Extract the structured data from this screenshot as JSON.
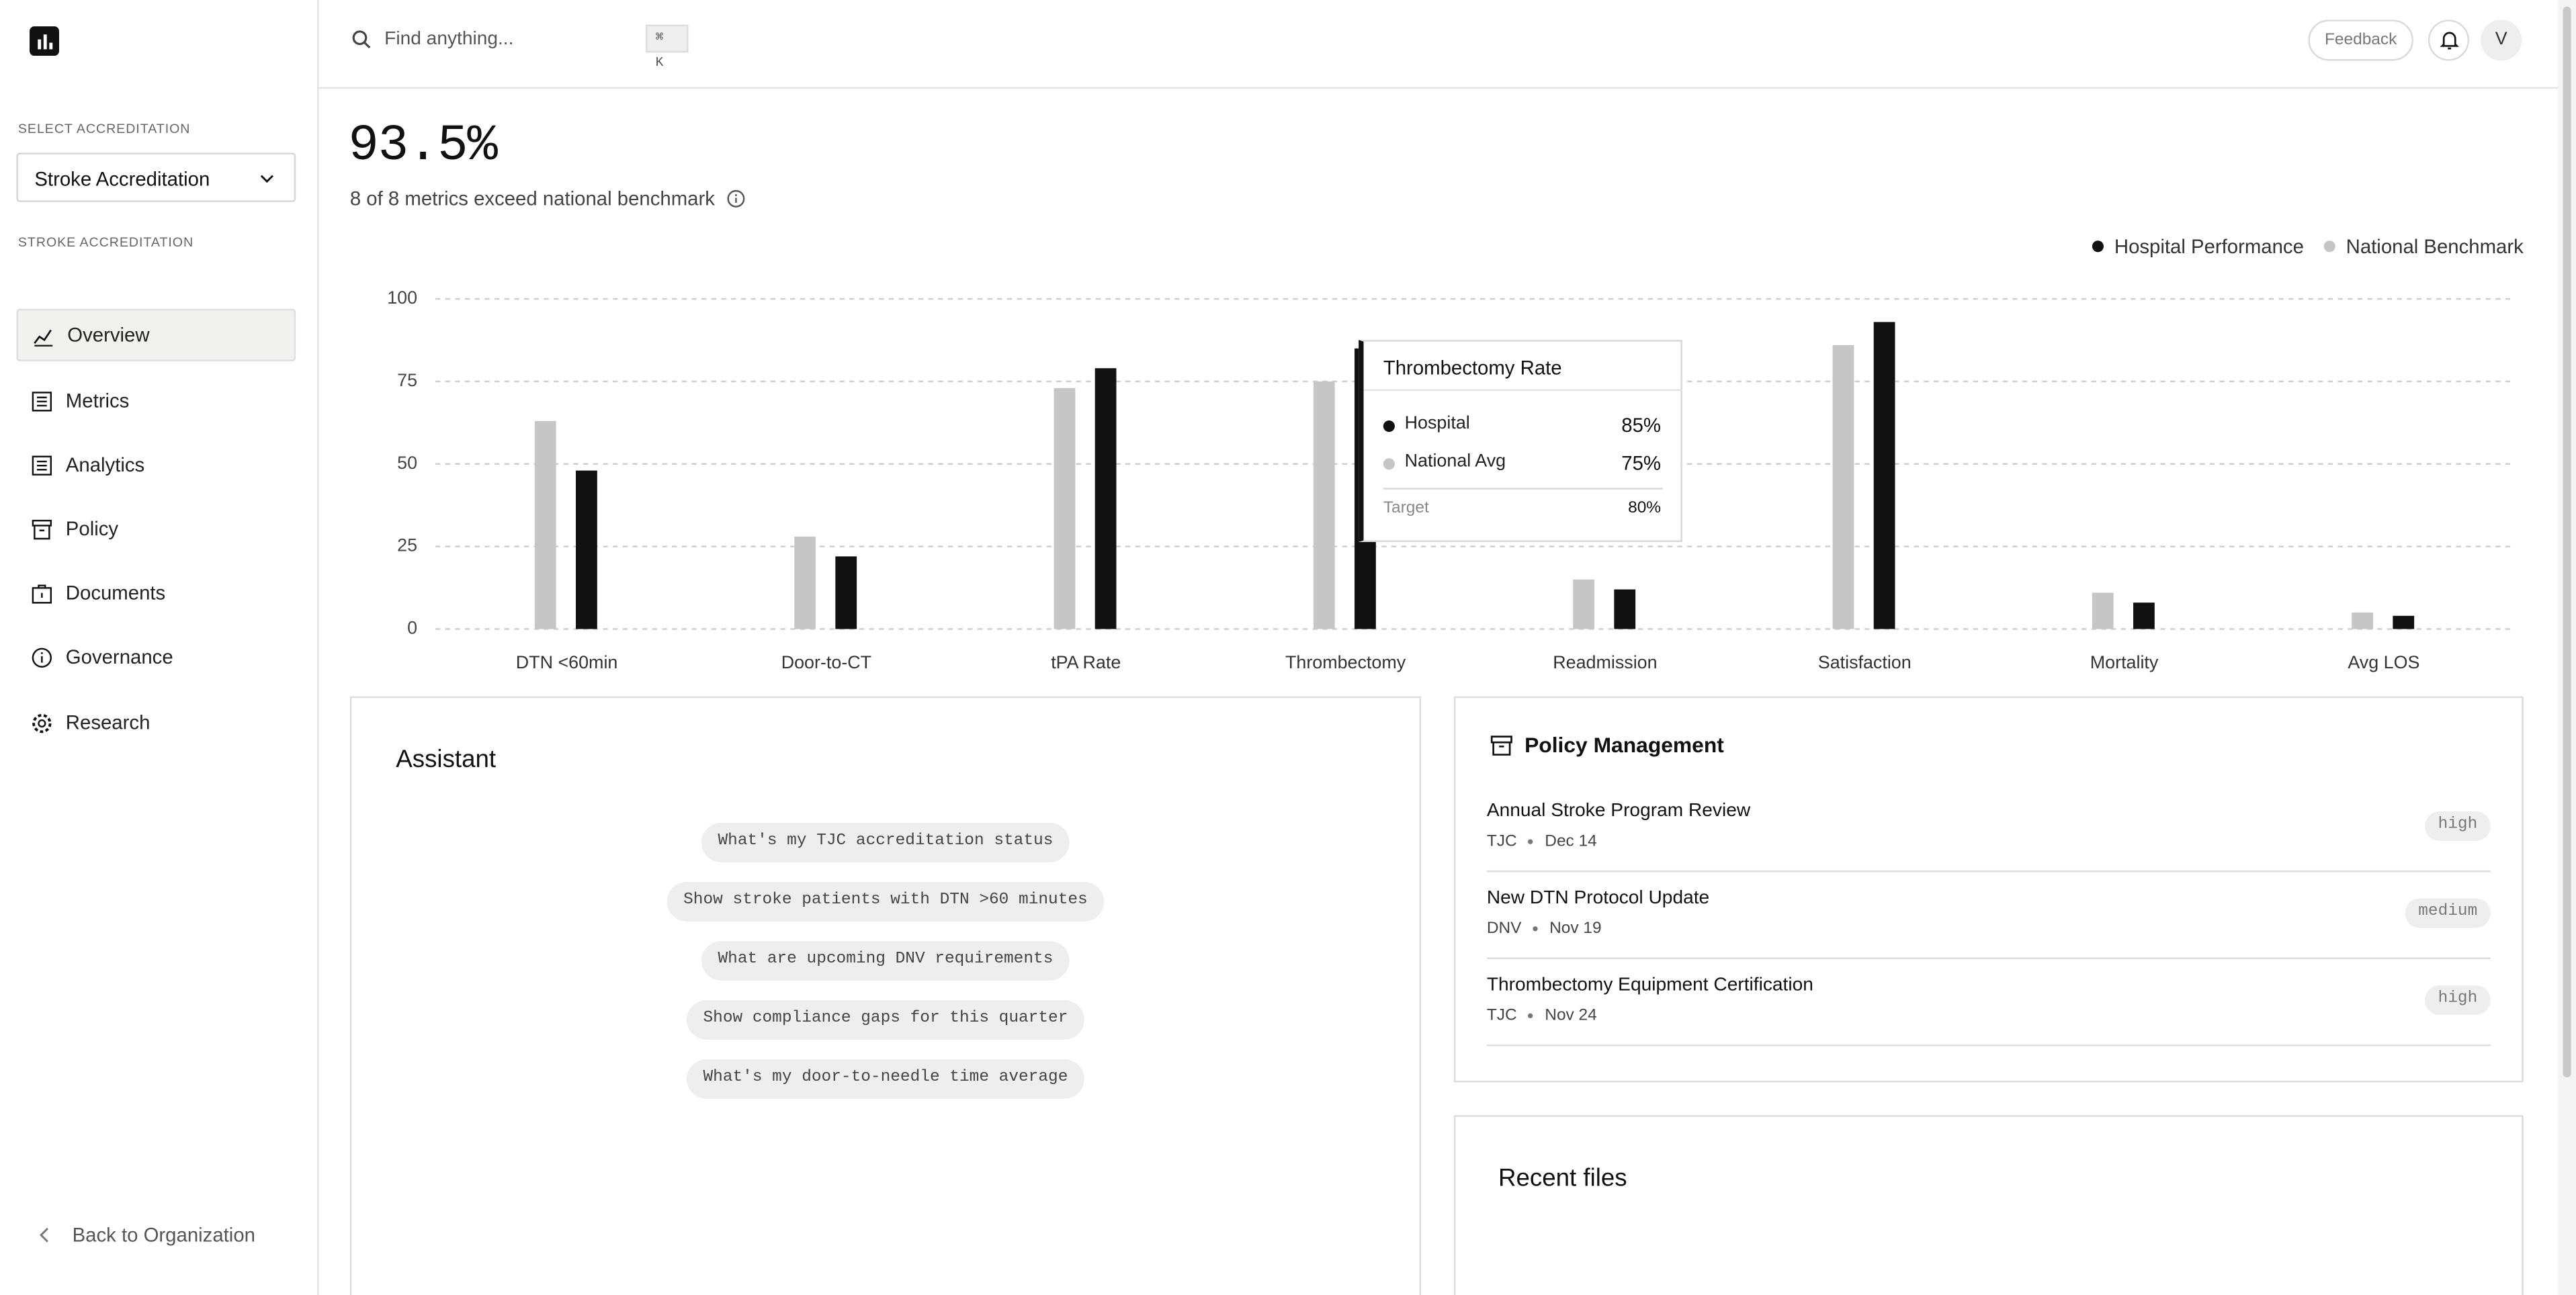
{
  "header": {
    "search_placeholder": "Find anything...",
    "shortcut": "⌘ K",
    "feedback": "Feedback",
    "avatar": "V"
  },
  "sidebar": {
    "select_label": "SELECT ACCREDITATION",
    "selected": "Stroke Accreditation",
    "section_label": "STROKE ACCREDITATION",
    "nav": [
      "Overview",
      "Metrics",
      "Analytics",
      "Policy",
      "Documents",
      "Governance",
      "Research"
    ],
    "active": 0,
    "back_link": "Back to Organization"
  },
  "summary": {
    "value": "93.5%",
    "caption": "8 of 8 metrics exceed national benchmark"
  },
  "chart_data": {
    "type": "bar",
    "categories": [
      "DTN <60min",
      "Door-to-CT",
      "tPA Rate",
      "Thrombectomy",
      "Readmission",
      "Satisfaction",
      "Mortality",
      "Avg LOS"
    ],
    "series": [
      {
        "name": "Hospital Performance",
        "color": "#111111",
        "values": [
          48,
          22,
          79,
          85,
          12,
          93,
          8,
          4
        ]
      },
      {
        "name": "National Benchmark",
        "color": "#c6c6c6",
        "values": [
          63,
          28,
          73,
          75,
          15,
          86,
          11,
          5
        ]
      }
    ],
    "ylim": [
      0,
      100
    ],
    "yticks": [
      0,
      25,
      50,
      75,
      100
    ],
    "grid": true,
    "legend": "top-right"
  },
  "tooltip": {
    "title": "Thrombectomy Rate",
    "rows": [
      {
        "label": "Hospital",
        "value": "85%"
      },
      {
        "label": "National Avg",
        "value": "75%"
      },
      {
        "label": "Target",
        "value": "80%"
      }
    ]
  },
  "assistant": {
    "title": "Assistant",
    "suggestions": [
      "What's my TJC accreditation status",
      "Show stroke patients with DTN >60 minutes",
      "What are upcoming DNV requirements",
      "Show compliance gaps for this quarter",
      "What's my door-to-needle time average"
    ]
  },
  "policy": {
    "title": "Policy Management",
    "items": [
      {
        "title": "Annual Stroke Program Review",
        "org": "TJC",
        "date": "Dec 14",
        "priority": "high"
      },
      {
        "title": "New DTN Protocol Update",
        "org": "DNV",
        "date": "Nov 19",
        "priority": "medium"
      },
      {
        "title": "Thrombectomy Equipment Certification",
        "org": "TJC",
        "date": "Nov 24",
        "priority": "high"
      }
    ]
  },
  "recent_files": {
    "title": "Recent files"
  }
}
